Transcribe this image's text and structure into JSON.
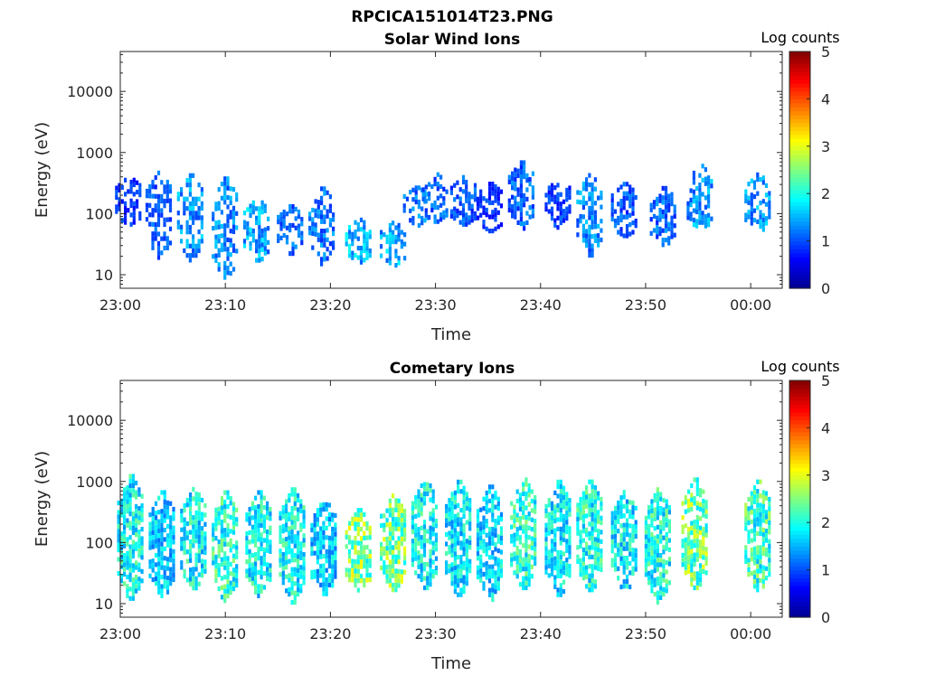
{
  "figure": {
    "title": "RPCICA151014T23.PNG"
  },
  "colormap": [
    "#00008f",
    "#0000ff",
    "#0080ff",
    "#00ffff",
    "#80ff80",
    "#ffff00",
    "#ff8000",
    "#ff0000",
    "#800000"
  ],
  "chart_data": [
    {
      "type": "heatmap",
      "title": "Solar Wind Ions",
      "xlabel": "Time",
      "ylabel": "Energy (eV)",
      "x_ticks": [
        "23:00",
        "23:10",
        "23:20",
        "23:30",
        "23:40",
        "23:50",
        "00:00"
      ],
      "y_ticks": [
        "10",
        "100",
        "1000",
        "10000"
      ],
      "yscale": "log",
      "ylim": [
        6,
        45000
      ],
      "xlim_minutes": [
        0,
        63
      ],
      "colorbar": {
        "label": "Log counts",
        "ticks": [
          "0",
          "1",
          "2",
          "3",
          "4",
          "5"
        ],
        "range": [
          0,
          5
        ]
      },
      "bursts": [
        {
          "t": 0.6,
          "e_lo": 60,
          "e_hi": 450,
          "level": 1.0
        },
        {
          "t": 3.5,
          "e_lo": 18,
          "e_hi": 550,
          "level": 1.2
        },
        {
          "t": 6.5,
          "e_lo": 15,
          "e_hi": 500,
          "level": 1.6
        },
        {
          "t": 9.8,
          "e_lo": 8,
          "e_hi": 450,
          "level": 1.5
        },
        {
          "t": 12.8,
          "e_lo": 15,
          "e_hi": 200,
          "level": 1.7
        },
        {
          "t": 16.0,
          "e_lo": 20,
          "e_hi": 150,
          "level": 1.3
        },
        {
          "t": 19.0,
          "e_lo": 15,
          "e_hi": 300,
          "level": 1.4
        },
        {
          "t": 22.5,
          "e_lo": 14,
          "e_hi": 90,
          "level": 1.8
        },
        {
          "t": 25.8,
          "e_lo": 14,
          "e_hi": 80,
          "level": 1.7
        },
        {
          "t": 28.0,
          "e_lo": 60,
          "e_hi": 300,
          "level": 1.4
        },
        {
          "t": 29.8,
          "e_lo": 70,
          "e_hi": 500,
          "level": 1.3
        },
        {
          "t": 32.5,
          "e_lo": 60,
          "e_hi": 450,
          "level": 1.2
        },
        {
          "t": 35.0,
          "e_lo": 50,
          "e_hi": 350,
          "level": 1.0
        },
        {
          "t": 38.0,
          "e_lo": 50,
          "e_hi": 800,
          "level": 1.3
        },
        {
          "t": 41.5,
          "e_lo": 60,
          "e_hi": 400,
          "level": 1.1
        },
        {
          "t": 44.5,
          "e_lo": 20,
          "e_hi": 500,
          "level": 1.5
        },
        {
          "t": 47.8,
          "e_lo": 40,
          "e_hi": 350,
          "level": 1.2
        },
        {
          "t": 51.5,
          "e_lo": 30,
          "e_hi": 300,
          "level": 1.3
        },
        {
          "t": 55.0,
          "e_lo": 50,
          "e_hi": 700,
          "level": 1.6
        },
        {
          "t": 60.5,
          "e_lo": 50,
          "e_hi": 500,
          "level": 1.6
        }
      ]
    },
    {
      "type": "heatmap",
      "title": "Cometary Ions",
      "xlabel": "Time",
      "ylabel": "Energy (eV)",
      "x_ticks": [
        "23:00",
        "23:10",
        "23:20",
        "23:30",
        "23:40",
        "23:50",
        "00:00"
      ],
      "y_ticks": [
        "10",
        "100",
        "1000",
        "10000"
      ],
      "yscale": "log",
      "ylim": [
        6,
        45000
      ],
      "xlim_minutes": [
        0,
        63
      ],
      "colorbar": {
        "label": "Log counts",
        "ticks": [
          "0",
          "1",
          "2",
          "3",
          "4",
          "5"
        ],
        "range": [
          0,
          5
        ]
      },
      "bursts": [
        {
          "t": 0.8,
          "e_lo": 10,
          "e_hi": 1500,
          "level": 2.2
        },
        {
          "t": 3.8,
          "e_lo": 12,
          "e_hi": 800,
          "level": 1.9
        },
        {
          "t": 6.8,
          "e_lo": 15,
          "e_hi": 900,
          "level": 2.2
        },
        {
          "t": 9.8,
          "e_lo": 10,
          "e_hi": 800,
          "level": 2.4
        },
        {
          "t": 13.0,
          "e_lo": 12,
          "e_hi": 800,
          "level": 2.2
        },
        {
          "t": 16.2,
          "e_lo": 10,
          "e_hi": 900,
          "level": 2.2
        },
        {
          "t": 19.2,
          "e_lo": 12,
          "e_hi": 600,
          "level": 1.9
        },
        {
          "t": 22.5,
          "e_lo": 15,
          "e_hi": 400,
          "level": 2.9
        },
        {
          "t": 25.8,
          "e_lo": 15,
          "e_hi": 700,
          "level": 2.8
        },
        {
          "t": 28.8,
          "e_lo": 15,
          "e_hi": 1300,
          "level": 2.2
        },
        {
          "t": 32.0,
          "e_lo": 12,
          "e_hi": 1200,
          "level": 2.1
        },
        {
          "t": 35.0,
          "e_lo": 10,
          "e_hi": 1000,
          "level": 2.0
        },
        {
          "t": 38.2,
          "e_lo": 15,
          "e_hi": 1300,
          "level": 2.4
        },
        {
          "t": 41.5,
          "e_lo": 12,
          "e_hi": 1200,
          "level": 2.1
        },
        {
          "t": 44.5,
          "e_lo": 15,
          "e_hi": 1200,
          "level": 2.3
        },
        {
          "t": 47.8,
          "e_lo": 15,
          "e_hi": 800,
          "level": 2.1
        },
        {
          "t": 51.0,
          "e_lo": 10,
          "e_hi": 900,
          "level": 2.3
        },
        {
          "t": 54.5,
          "e_lo": 15,
          "e_hi": 1300,
          "level": 2.8
        },
        {
          "t": 60.5,
          "e_lo": 15,
          "e_hi": 1200,
          "level": 2.5
        }
      ]
    }
  ]
}
